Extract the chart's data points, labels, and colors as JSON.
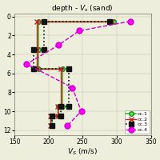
{
  "title": "depth - $V_s$ (sand)",
  "xlabel": "$V_S$ (m/s)",
  "xlim": [
    150,
    350
  ],
  "ylim": [
    12.5,
    -0.3
  ],
  "yticks": [
    0,
    2,
    4,
    6,
    8,
    10,
    12
  ],
  "xticks": [
    150,
    200,
    250,
    300,
    350
  ],
  "series": [
    {
      "label": "cc.1",
      "color": "#33bb33",
      "linestyle": "-",
      "marker": "o",
      "markerfacecolor": "#44ee44",
      "markeredgecolor": "#228822",
      "markersize": 4,
      "linewidth": 1.2,
      "depth": [
        0.5,
        0.5,
        3.5,
        3.5,
        5.5,
        5.5,
        9.5,
        9.5,
        10.5,
        10.5,
        11.5
      ],
      "vs": [
        295,
        185,
        185,
        185,
        185,
        220,
        220,
        215,
        215,
        205,
        205
      ]
    },
    {
      "label": "cc.2",
      "color": "#cc2222",
      "linestyle": "-",
      "marker": "x",
      "markerfacecolor": "#cc2222",
      "markeredgecolor": "#cc2222",
      "markersize": 4,
      "linewidth": 1.0,
      "depth": [
        0.5,
        0.5,
        3.5,
        3.5,
        5.5,
        5.5,
        9.5,
        9.5,
        10.5,
        10.5,
        11.5
      ],
      "vs": [
        293,
        183,
        183,
        183,
        183,
        218,
        218,
        213,
        213,
        203,
        203
      ]
    },
    {
      "label": "cc.3",
      "color": "#111111",
      "linestyle": ":",
      "marker": "s",
      "markerfacecolor": "#111111",
      "markeredgecolor": "#111111",
      "markersize": 4,
      "linewidth": 1.2,
      "depth": [
        0.5,
        0.5,
        3.5,
        3.5,
        5.5,
        5.5,
        9.5,
        9.5,
        10.5,
        10.5,
        11.5
      ],
      "vs": [
        290,
        193,
        193,
        178,
        178,
        230,
        230,
        218,
        218,
        205,
        205
      ]
    },
    {
      "label": "cc.4",
      "color": "#cc00cc",
      "linestyle": "--",
      "marker": "o",
      "markerfacecolor": "#ff00ff",
      "markeredgecolor": "#cc00cc",
      "markersize": 5,
      "linewidth": 1.0,
      "depth": [
        0.5,
        1.5,
        3.0,
        5.0,
        7.5,
        10.0,
        11.5
      ],
      "vs": [
        320,
        245,
        215,
        168,
        235,
        248,
        228
      ]
    }
  ],
  "background_color": "#eeeedc",
  "grid_color": "#bbbbaa",
  "legend_loc": "lower right"
}
